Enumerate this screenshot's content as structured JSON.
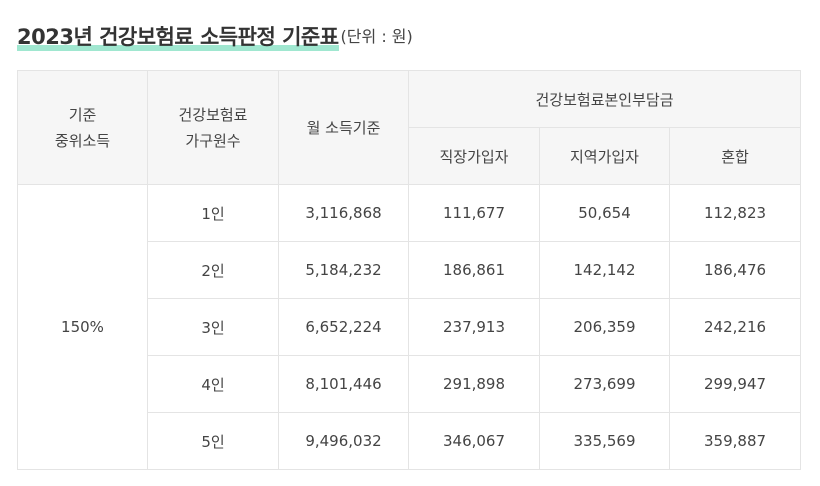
{
  "title": {
    "main": "2023년 건강보험료 소득판정 기준표",
    "unit": "(단위 : 원)"
  },
  "table": {
    "headers": {
      "median_line1": "기준",
      "median_line2": "중위소득",
      "household_line1": "건강보험료",
      "household_line2": "가구원수",
      "income": "월 소득기준",
      "premium_group": "건강보험료본인부담금",
      "employee": "직장가입자",
      "regional": "지역가입자",
      "mixed": "혼합"
    },
    "median_value": "150%",
    "rows": [
      {
        "household": "1인",
        "income": "3,116,868",
        "employee": "111,677",
        "regional": "50,654",
        "mixed": "112,823"
      },
      {
        "household": "2인",
        "income": "5,184,232",
        "employee": "186,861",
        "regional": "142,142",
        "mixed": "186,476"
      },
      {
        "household": "3인",
        "income": "6,652,224",
        "employee": "237,913",
        "regional": "206,359",
        "mixed": "242,216"
      },
      {
        "household": "4인",
        "income": "8,101,446",
        "employee": "291,898",
        "regional": "273,699",
        "mixed": "299,947"
      },
      {
        "household": "5인",
        "income": "9,496,032",
        "employee": "346,067",
        "regional": "335,569",
        "mixed": "359,887"
      }
    ]
  }
}
